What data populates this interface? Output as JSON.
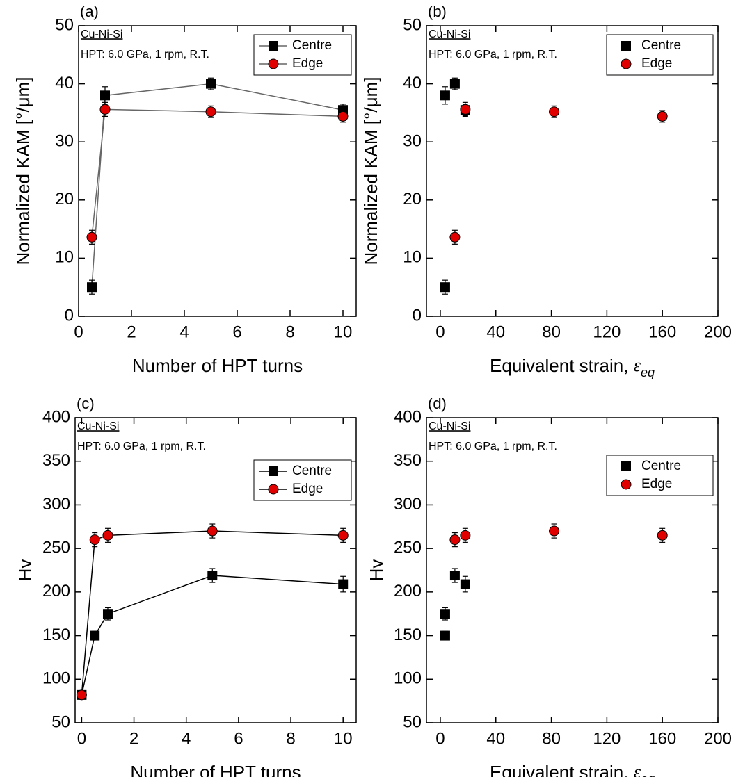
{
  "chart_data": [
    {
      "type": "line",
      "panel_label": "(a)",
      "annotation_1": "Cu-Ni-Si",
      "annotation_2": "HPT: 6.0 GPa, 1 rpm, R.T.",
      "xlabel": "Number of HPT turns",
      "ylabel": "Normalized KAM [°/μm]",
      "xlim": [
        0,
        10.5
      ],
      "xticks": [
        0,
        2,
        4,
        6,
        8,
        10
      ],
      "ylim": [
        0,
        50
      ],
      "yticks": [
        0,
        10,
        20,
        30,
        40,
        50
      ],
      "line_color": "#666666",
      "legend": "upper right",
      "series": [
        {
          "name": "Centre",
          "color": "#000000",
          "marker": "square",
          "x": [
            0.5,
            1,
            5,
            10
          ],
          "values": [
            5,
            38,
            40,
            35.5
          ],
          "errors": [
            1.2,
            1.5,
            1,
            1
          ]
        },
        {
          "name": "Edge",
          "color": "#e00000",
          "marker": "circle",
          "x": [
            0.5,
            1,
            5,
            10
          ],
          "values": [
            13.6,
            35.6,
            35.2,
            34.4
          ],
          "errors": [
            1.2,
            1.2,
            1,
            1
          ]
        }
      ]
    },
    {
      "type": "scatter",
      "panel_label": "(b)",
      "annotation_1": "Cu-Ni-Si",
      "annotation_2": "HPT: 6.0 GPa, 1 rpm, R.T.",
      "xlabel": "Equivalent strain, ",
      "xlabel_symbol": "ε",
      "xlabel_subscript": "eq",
      "ylabel": "Normalized KAM [°/μm]",
      "xlim": [
        -10,
        200
      ],
      "xticks": [
        0,
        40,
        80,
        120,
        160,
        200
      ],
      "ylim": [
        0,
        50
      ],
      "yticks": [
        0,
        10,
        20,
        30,
        40,
        50
      ],
      "legend": "upper right",
      "series": [
        {
          "name": "Centre",
          "color": "#000000",
          "marker": "square",
          "x": [
            3.5,
            3.5,
            10.5,
            18
          ],
          "values": [
            5,
            38,
            40,
            35.5
          ],
          "errors": [
            1.2,
            1.5,
            1,
            1
          ]
        },
        {
          "name": "Edge",
          "color": "#e00000",
          "marker": "circle",
          "x": [
            10.5,
            18,
            82,
            160
          ],
          "values": [
            13.6,
            35.6,
            35.2,
            34.4
          ],
          "errors": [
            1.2,
            1.2,
            1,
            1
          ]
        }
      ]
    },
    {
      "type": "line",
      "panel_label": "(c)",
      "annotation_1": "Cu-Ni-Si",
      "annotation_2": "HPT: 6.0 GPa, 1 rpm, R.T.",
      "xlabel": "Number of HPT turns",
      "ylabel": "Hv",
      "xlim": [
        -0.25,
        10.5
      ],
      "xticks": [
        0,
        2,
        4,
        6,
        8,
        10
      ],
      "ylim": [
        50,
        400
      ],
      "yticks": [
        50,
        100,
        150,
        200,
        250,
        300,
        350,
        400
      ],
      "line_color": "#000000",
      "legend": "upper right",
      "series": [
        {
          "name": "Centre",
          "color": "#000000",
          "marker": "square",
          "x": [
            0,
            0.5,
            1,
            5,
            10
          ],
          "values": [
            82,
            150,
            175,
            219,
            209
          ],
          "errors": [
            4,
            5,
            7,
            8,
            9
          ]
        },
        {
          "name": "Edge",
          "color": "#e00000",
          "marker": "circle",
          "x": [
            0,
            0.5,
            1,
            5,
            10
          ],
          "values": [
            82,
            260,
            265,
            270,
            265
          ],
          "errors": [
            4,
            8,
            8,
            8,
            8
          ]
        }
      ]
    },
    {
      "type": "scatter",
      "panel_label": "(d)",
      "annotation_1": "Cu-Ni-Si",
      "annotation_2": "HPT: 6.0 GPa, 1 rpm, R.T.",
      "xlabel": "Equivalent strain, ",
      "xlabel_symbol": "ε",
      "xlabel_subscript": "eq",
      "ylabel": "Hv",
      "xlim": [
        -10,
        200
      ],
      "xticks": [
        0,
        40,
        80,
        120,
        160,
        200
      ],
      "ylim": [
        50,
        400
      ],
      "yticks": [
        50,
        100,
        150,
        200,
        250,
        300,
        350,
        400
      ],
      "legend": "upper right",
      "series": [
        {
          "name": "Centre",
          "color": "#000000",
          "marker": "square",
          "x": [
            3.5,
            3.5,
            10.5,
            18
          ],
          "values": [
            150,
            175,
            219,
            209
          ],
          "errors": [
            5,
            7,
            8,
            9
          ]
        },
        {
          "name": "Edge",
          "color": "#e00000",
          "marker": "circle",
          "x": [
            10.5,
            18,
            82,
            160
          ],
          "values": [
            260,
            265,
            270,
            265
          ],
          "errors": [
            8,
            8,
            8,
            8
          ]
        }
      ]
    }
  ]
}
